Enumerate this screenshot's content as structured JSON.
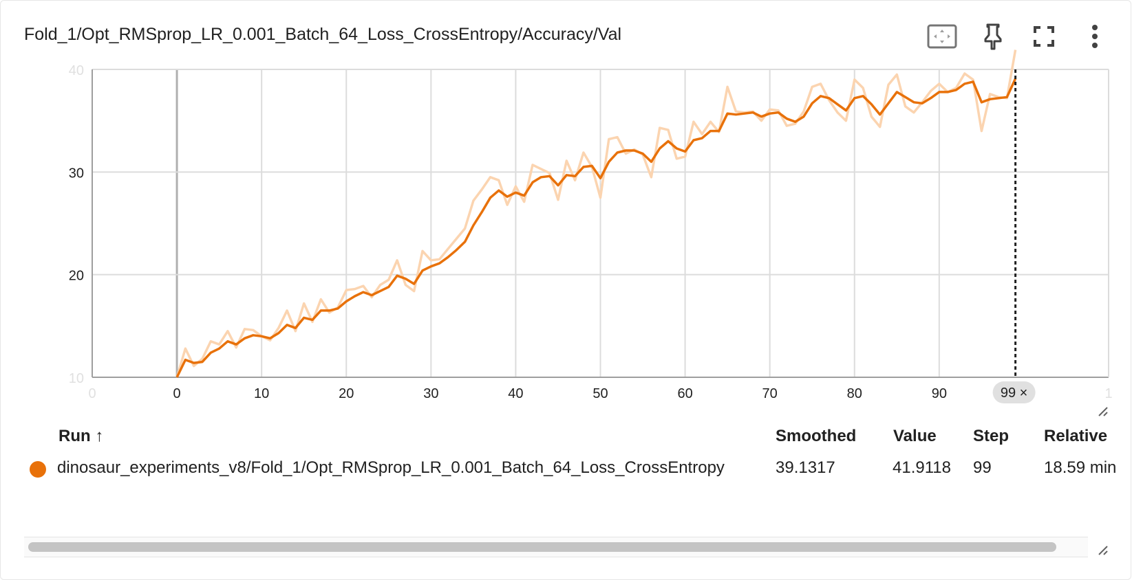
{
  "card": {
    "title": "Fold_1/Opt_RMSprop_LR_0.001_Batch_64_Loss_CrossEntropy/Accuracy/Val",
    "toolbar": [
      {
        "icon": "fit-domain-icon"
      },
      {
        "icon": "pin-icon"
      },
      {
        "icon": "fullscreen-icon"
      },
      {
        "icon": "more-vert-icon"
      }
    ]
  },
  "colors": {
    "smoothed": "#e8710a",
    "raw": "#fbd4b0",
    "grid": "#dcdcdc",
    "axis": "#9e9e9e"
  },
  "chart_data": {
    "type": "line",
    "title": "",
    "xlabel": "",
    "ylabel": "",
    "xlim": [
      -10,
      110
    ],
    "ylim": [
      10,
      40
    ],
    "x_ticks": [
      "0",
      "0",
      "10",
      "20",
      "30",
      "40",
      "50",
      "60",
      "70",
      "80",
      "90",
      "1"
    ],
    "y_ticks": [
      "10",
      "20",
      "30",
      "40"
    ],
    "grid": true,
    "cursor": {
      "step": 99,
      "label": "99 ×"
    },
    "series": [
      {
        "role": "raw",
        "values": [
          10.0,
          12.8,
          11.1,
          11.8,
          13.5,
          13.2,
          14.5,
          12.9,
          14.7,
          14.6,
          14.0,
          13.6,
          14.8,
          16.5,
          14.5,
          17.2,
          15.4,
          17.6,
          16.3,
          16.8,
          18.5,
          18.6,
          18.9,
          17.8,
          19.0,
          19.5,
          21.4,
          19.0,
          18.4,
          22.3,
          21.4,
          21.5,
          22.5,
          23.5,
          24.5,
          27.2,
          28.3,
          29.5,
          29.2,
          26.8,
          28.6,
          27.1,
          30.7,
          30.3,
          29.9,
          27.3,
          31.1,
          29.2,
          31.9,
          30.5,
          27.5,
          33.2,
          33.4,
          31.8,
          32.2,
          31.7,
          29.5,
          34.3,
          34.1,
          31.3,
          31.5,
          34.9,
          33.7,
          34.9,
          33.9,
          38.3,
          35.9,
          35.8,
          35.9,
          35.0,
          36.1,
          36.0,
          34.5,
          34.7,
          35.9,
          38.3,
          38.6,
          37.0,
          35.8,
          35.0,
          39.0,
          38.2,
          35.4,
          34.4,
          38.5,
          39.5,
          36.4,
          35.8,
          36.8,
          37.9,
          38.6,
          37.8,
          38.2,
          39.6,
          39.0,
          34.0,
          37.6,
          37.3,
          37.2,
          41.9
        ]
      },
      {
        "role": "smoothed",
        "values": [
          10.0,
          11.7,
          11.4,
          11.5,
          12.4,
          12.8,
          13.5,
          13.2,
          13.8,
          14.1,
          14.0,
          13.8,
          14.3,
          15.1,
          14.8,
          15.8,
          15.6,
          16.5,
          16.5,
          16.7,
          17.4,
          17.9,
          18.3,
          18.0,
          18.4,
          18.8,
          19.9,
          19.6,
          19.1,
          20.4,
          20.8,
          21.1,
          21.7,
          22.4,
          23.2,
          24.8,
          26.1,
          27.5,
          28.2,
          27.6,
          28.0,
          27.7,
          29.0,
          29.5,
          29.6,
          28.7,
          29.7,
          29.6,
          30.5,
          30.6,
          29.4,
          31.0,
          31.9,
          32.1,
          32.1,
          31.8,
          31.0,
          32.3,
          33.0,
          32.3,
          32.0,
          33.1,
          33.3,
          34.0,
          34.0,
          35.7,
          35.6,
          35.7,
          35.8,
          35.4,
          35.7,
          35.8,
          35.2,
          34.9,
          35.4,
          36.7,
          37.4,
          37.2,
          36.6,
          36.0,
          37.2,
          37.4,
          36.6,
          35.6,
          36.7,
          37.8,
          37.3,
          36.8,
          36.7,
          37.2,
          37.8,
          37.8,
          38.0,
          38.6,
          38.8,
          36.8,
          37.1,
          37.2,
          37.3,
          39.1
        ]
      }
    ]
  },
  "table": {
    "headers": {
      "run": "Run ↑",
      "smoothed": "Smoothed",
      "value": "Value",
      "step": "Step",
      "relative": "Relative"
    },
    "rows": [
      {
        "run": "dinosaur_experiments_v8/Fold_1/Opt_RMSprop_LR_0.001_Batch_64_Loss_CrossEntropy",
        "smoothed": "39.1317",
        "value": "41.9118",
        "step": "99",
        "relative": "18.59 min"
      }
    ]
  }
}
